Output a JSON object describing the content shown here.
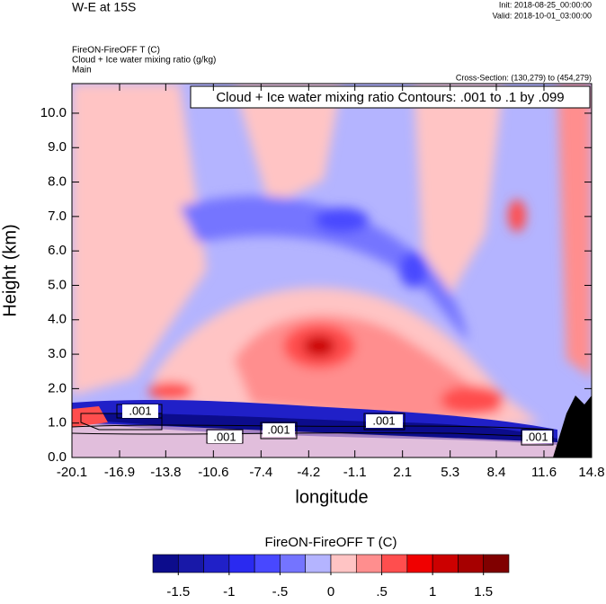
{
  "chart_data": {
    "type": "contour",
    "title": "W-E at 15S",
    "init": "Init: 2018-08-25_00:00:00",
    "valid": "Valid: 2018-10-01_03:00:00",
    "field_lines": [
      "FireON-FireOFF T   (C)",
      "Cloud + Ice water mixing ratio   (g/kg)",
      "Main"
    ],
    "cross_section": "Cross-Section: (130,279) to (454,279)",
    "contour_info": "Cloud + Ice water mixing ratio Contours: .001 to .1 by .099",
    "contour_labels": [
      ".001",
      ".001",
      ".001",
      ".001",
      ".001"
    ],
    "x_label": "longitude",
    "y_label": "Height (km)",
    "xlim": [
      -20.1,
      14.8
    ],
    "xticks": [
      -20.1,
      -16.9,
      -13.8,
      -10.6,
      -7.4,
      -4.2,
      -1.1,
      2.1,
      5.3,
      8.4,
      11.6,
      14.8
    ],
    "ylim": [
      0,
      10.86
    ],
    "yticks": [
      {
        "value": 0,
        "label": "0.0"
      },
      {
        "value": 1,
        "label": "1.0"
      },
      {
        "value": 2,
        "label": "2.0"
      },
      {
        "value": 3,
        "label": "3.0"
      },
      {
        "value": 4,
        "label": "4.0"
      },
      {
        "value": 5,
        "label": "5.0"
      },
      {
        "value": 6,
        "label": "6.0"
      },
      {
        "value": 7,
        "label": "7.0"
      },
      {
        "value": 8,
        "label": "8.0"
      },
      {
        "value": 9,
        "label": "9.0"
      },
      {
        "value": 10,
        "label": "10.0"
      }
    ],
    "colorbar": {
      "title": "FireON-FireOFF T  (C)",
      "lim": [
        -1.75,
        1.75
      ],
      "colors": [
        "#0c0c8c",
        "#1818a8",
        "#2020c8",
        "#2a2af0",
        "#4848ff",
        "#7474ff",
        "#b4b4ff",
        "#ffc4c4",
        "#ff8e8e",
        "#ff4e4e",
        "#f00000",
        "#cc0000",
        "#a60000",
        "#800000"
      ],
      "ticks": [
        {
          "value": -1.5,
          "label": "-1.5"
        },
        {
          "value": -1,
          "label": "-1"
        },
        {
          "value": -0.5,
          "label": "-.5"
        },
        {
          "value": 0,
          "label": "0"
        },
        {
          "value": 0.5,
          "label": ".5"
        },
        {
          "value": 1,
          "label": "1"
        },
        {
          "value": 1.5,
          "label": "1.5"
        }
      ]
    }
  }
}
